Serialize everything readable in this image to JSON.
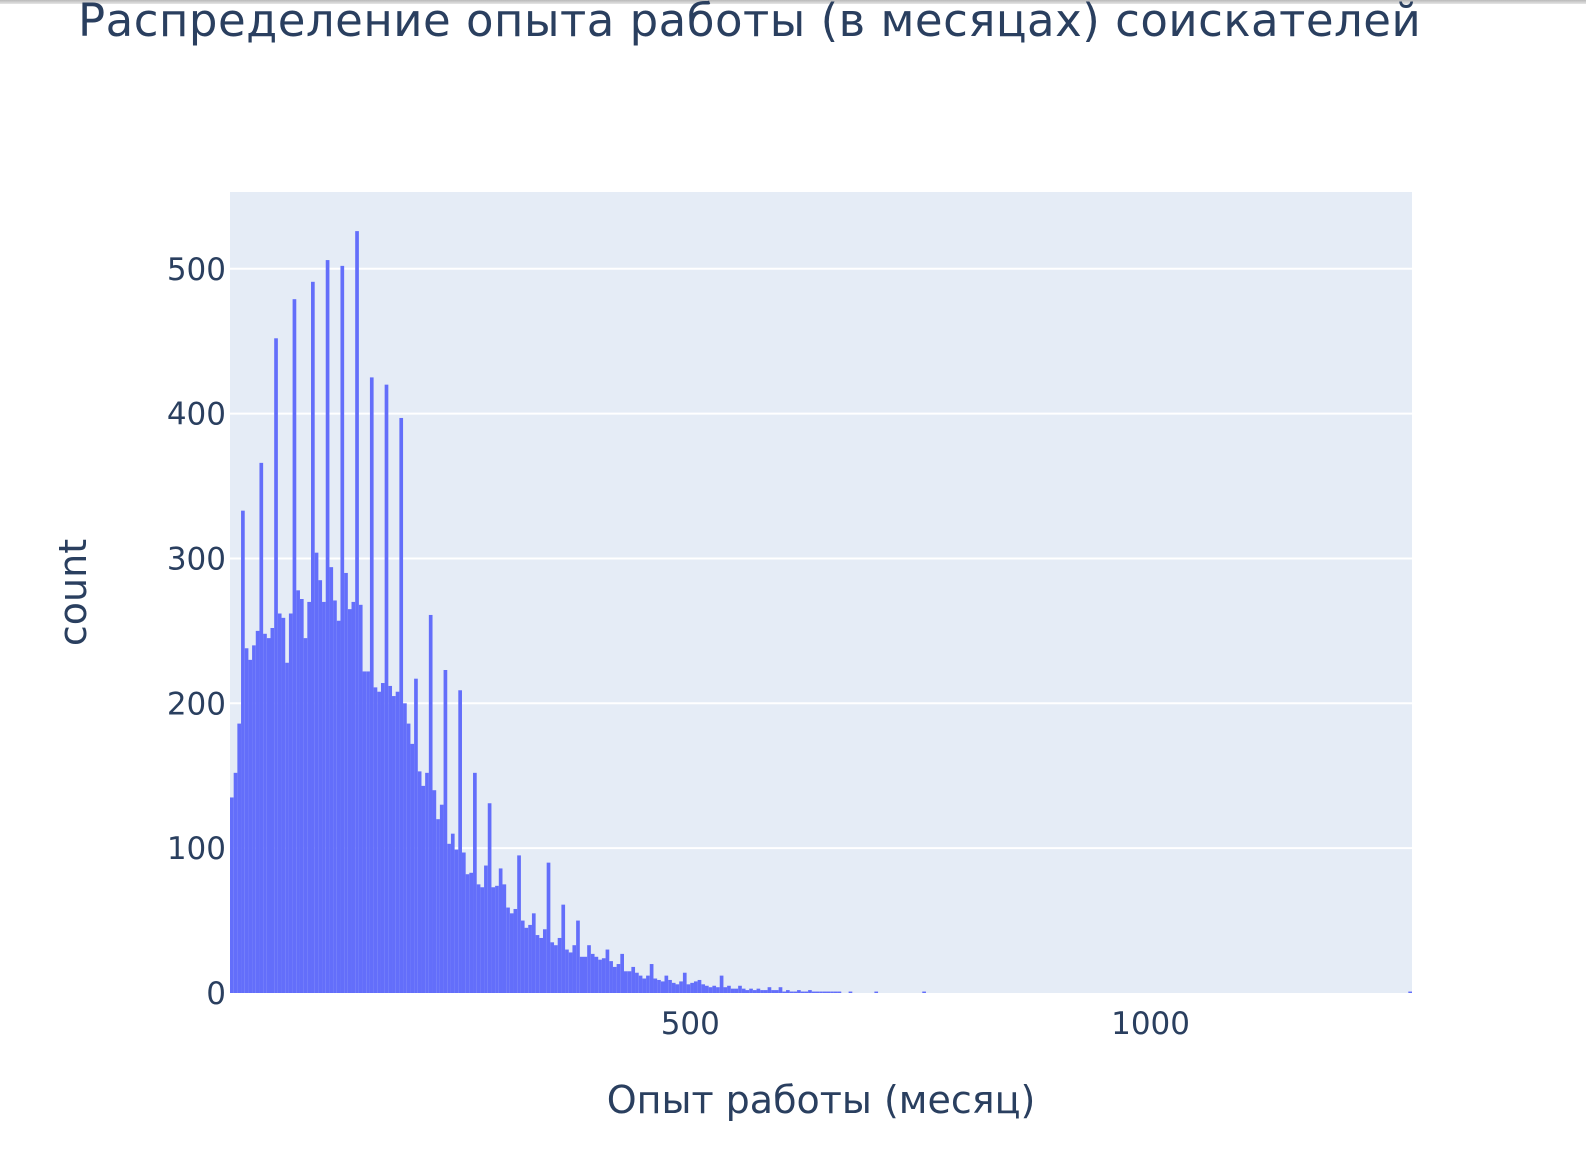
{
  "chart_data": {
    "type": "bar",
    "title": "Распределение опыта работы (в месяцах) соискателей",
    "xlabel": "Опыт работы (месяц)",
    "ylabel": "count",
    "xlim": [
      0,
      1284
    ],
    "ylim": [
      0,
      553
    ],
    "x_ticks": [
      500,
      1000
    ],
    "x_tick_labels": [
      "500",
      "1000"
    ],
    "y_ticks": [
      0,
      100,
      200,
      300,
      400,
      500
    ],
    "y_tick_labels": [
      "0",
      "100",
      "200",
      "300",
      "400",
      "500"
    ],
    "grid": true,
    "legend": "none",
    "colors": {
      "bar": "#636efa",
      "plot_bg": "#e5ecf6",
      "grid": "#ffffff",
      "text": "#2a3f5f"
    },
    "bin_width": 4,
    "bins": [
      [
        0,
        135
      ],
      [
        4,
        152
      ],
      [
        8,
        186
      ],
      [
        12,
        333
      ],
      [
        16,
        238
      ],
      [
        20,
        230
      ],
      [
        24,
        240
      ],
      [
        28,
        250
      ],
      [
        32,
        366
      ],
      [
        36,
        248
      ],
      [
        40,
        245
      ],
      [
        44,
        252
      ],
      [
        48,
        452
      ],
      [
        52,
        262
      ],
      [
        56,
        259
      ],
      [
        60,
        228
      ],
      [
        64,
        262
      ],
      [
        68,
        479
      ],
      [
        72,
        278
      ],
      [
        76,
        272
      ],
      [
        80,
        245
      ],
      [
        84,
        270
      ],
      [
        88,
        491
      ],
      [
        92,
        304
      ],
      [
        96,
        285
      ],
      [
        100,
        270
      ],
      [
        104,
        506
      ],
      [
        108,
        294
      ],
      [
        112,
        271
      ],
      [
        116,
        257
      ],
      [
        120,
        502
      ],
      [
        124,
        290
      ],
      [
        128,
        265
      ],
      [
        132,
        270
      ],
      [
        136,
        526
      ],
      [
        140,
        268
      ],
      [
        144,
        222
      ],
      [
        148,
        222
      ],
      [
        152,
        425
      ],
      [
        156,
        211
      ],
      [
        160,
        208
      ],
      [
        164,
        214
      ],
      [
        168,
        420
      ],
      [
        172,
        212
      ],
      [
        176,
        205
      ],
      [
        180,
        208
      ],
      [
        184,
        397
      ],
      [
        188,
        200
      ],
      [
        192,
        186
      ],
      [
        196,
        172
      ],
      [
        200,
        217
      ],
      [
        204,
        153
      ],
      [
        208,
        143
      ],
      [
        212,
        152
      ],
      [
        216,
        261
      ],
      [
        220,
        140
      ],
      [
        224,
        120
      ],
      [
        228,
        130
      ],
      [
        232,
        223
      ],
      [
        236,
        103
      ],
      [
        240,
        110
      ],
      [
        244,
        99
      ],
      [
        248,
        209
      ],
      [
        252,
        97
      ],
      [
        256,
        82
      ],
      [
        260,
        83
      ],
      [
        264,
        152
      ],
      [
        268,
        75
      ],
      [
        272,
        73
      ],
      [
        276,
        88
      ],
      [
        280,
        131
      ],
      [
        284,
        73
      ],
      [
        288,
        74
      ],
      [
        292,
        86
      ],
      [
        296,
        75
      ],
      [
        300,
        59
      ],
      [
        304,
        55
      ],
      [
        308,
        58
      ],
      [
        312,
        95
      ],
      [
        316,
        50
      ],
      [
        320,
        45
      ],
      [
        324,
        47
      ],
      [
        328,
        55
      ],
      [
        332,
        40
      ],
      [
        336,
        38
      ],
      [
        340,
        44
      ],
      [
        344,
        90
      ],
      [
        348,
        35
      ],
      [
        352,
        33
      ],
      [
        356,
        38
      ],
      [
        360,
        61
      ],
      [
        364,
        30
      ],
      [
        368,
        28
      ],
      [
        372,
        33
      ],
      [
        376,
        50
      ],
      [
        380,
        25
      ],
      [
        384,
        25
      ],
      [
        388,
        33
      ],
      [
        392,
        27
      ],
      [
        396,
        25
      ],
      [
        400,
        23
      ],
      [
        404,
        24
      ],
      [
        408,
        30
      ],
      [
        412,
        22
      ],
      [
        416,
        18
      ],
      [
        420,
        20
      ],
      [
        424,
        27
      ],
      [
        428,
        15
      ],
      [
        432,
        15
      ],
      [
        436,
        18
      ],
      [
        440,
        14
      ],
      [
        444,
        12
      ],
      [
        448,
        10
      ],
      [
        452,
        12
      ],
      [
        456,
        20
      ],
      [
        460,
        10
      ],
      [
        464,
        9
      ],
      [
        468,
        8
      ],
      [
        472,
        12
      ],
      [
        476,
        9
      ],
      [
        480,
        7
      ],
      [
        484,
        6
      ],
      [
        488,
        8
      ],
      [
        492,
        14
      ],
      [
        496,
        6
      ],
      [
        500,
        7
      ],
      [
        504,
        8
      ],
      [
        508,
        9
      ],
      [
        512,
        6
      ],
      [
        516,
        5
      ],
      [
        520,
        4
      ],
      [
        524,
        5
      ],
      [
        528,
        4
      ],
      [
        532,
        12
      ],
      [
        536,
        4
      ],
      [
        540,
        5
      ],
      [
        544,
        3
      ],
      [
        548,
        3
      ],
      [
        552,
        5
      ],
      [
        556,
        3
      ],
      [
        560,
        2
      ],
      [
        564,
        3
      ],
      [
        568,
        2
      ],
      [
        572,
        3
      ],
      [
        576,
        2
      ],
      [
        580,
        2
      ],
      [
        584,
        4
      ],
      [
        588,
        2
      ],
      [
        592,
        2
      ],
      [
        596,
        4
      ],
      [
        600,
        1
      ],
      [
        604,
        2
      ],
      [
        608,
        1
      ],
      [
        612,
        1
      ],
      [
        616,
        2
      ],
      [
        620,
        1
      ],
      [
        624,
        1
      ],
      [
        628,
        2
      ],
      [
        632,
        1
      ],
      [
        636,
        1
      ],
      [
        640,
        1
      ],
      [
        644,
        1
      ],
      [
        648,
        1
      ],
      [
        652,
        1
      ],
      [
        656,
        1
      ],
      [
        660,
        1
      ],
      [
        672,
        1
      ],
      [
        700,
        1
      ],
      [
        752,
        1
      ],
      [
        1280,
        1
      ]
    ]
  }
}
